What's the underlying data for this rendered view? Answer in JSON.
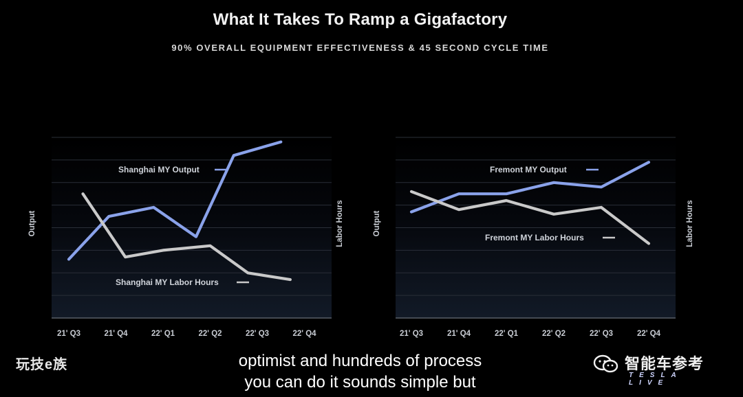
{
  "title": "What It Takes To Ramp a Gigafactory",
  "subtitle": "90% OVERALL EQUIPMENT EFFECTIVENESS & 45 SECOND CYCLE TIME",
  "chart_data": [
    {
      "type": "line",
      "categories": [
        "21' Q3",
        "21' Q4",
        "22' Q1",
        "22' Q2",
        "22' Q3",
        "22' Q4"
      ],
      "ylabel": "Output",
      "ylabel_right": "Labor Hours",
      "grid": true,
      "series": [
        {
          "name": "Shanghai MY Output",
          "color": "#8aa2ea",
          "x": [
            0,
            0.85,
            1.8,
            2.7,
            3.5,
            4.5
          ],
          "values": [
            2.6,
            4.5,
            4.9,
            3.6,
            7.2,
            7.8
          ]
        },
        {
          "name": "Shanghai MY Labor Hours",
          "color": "#c9c9c9",
          "x": [
            0.3,
            1.2,
            2.0,
            3.0,
            3.8,
            4.7
          ],
          "values": [
            5.5,
            2.7,
            3.0,
            3.2,
            2.0,
            1.7
          ]
        }
      ]
    },
    {
      "type": "line",
      "categories": [
        "21' Q3",
        "21' Q4",
        "22' Q1",
        "22' Q2",
        "22' Q3",
        "22' Q4"
      ],
      "ylabel": "Output",
      "ylabel_right": "Labor Hours",
      "grid": true,
      "series": [
        {
          "name": "Fremont MY Output",
          "color": "#8aa2ea",
          "x": [
            0,
            1.0,
            2.0,
            3.0,
            4.0,
            5.0
          ],
          "values": [
            4.7,
            5.5,
            5.5,
            6.0,
            5.8,
            6.9
          ]
        },
        {
          "name": "Fremont MY Labor Hours",
          "color": "#c9c9c9",
          "x": [
            0,
            1.0,
            2.0,
            3.0,
            4.0,
            5.0
          ],
          "values": [
            5.6,
            4.8,
            5.2,
            4.6,
            4.9,
            3.3
          ]
        }
      ]
    }
  ],
  "captions": [
    "optimist and hundreds of process",
    "you can do it sounds simple but"
  ],
  "watermark_left": "玩技e族",
  "watermark_right": {
    "name": "智能车参考",
    "sub": "TESLA LIVE"
  }
}
